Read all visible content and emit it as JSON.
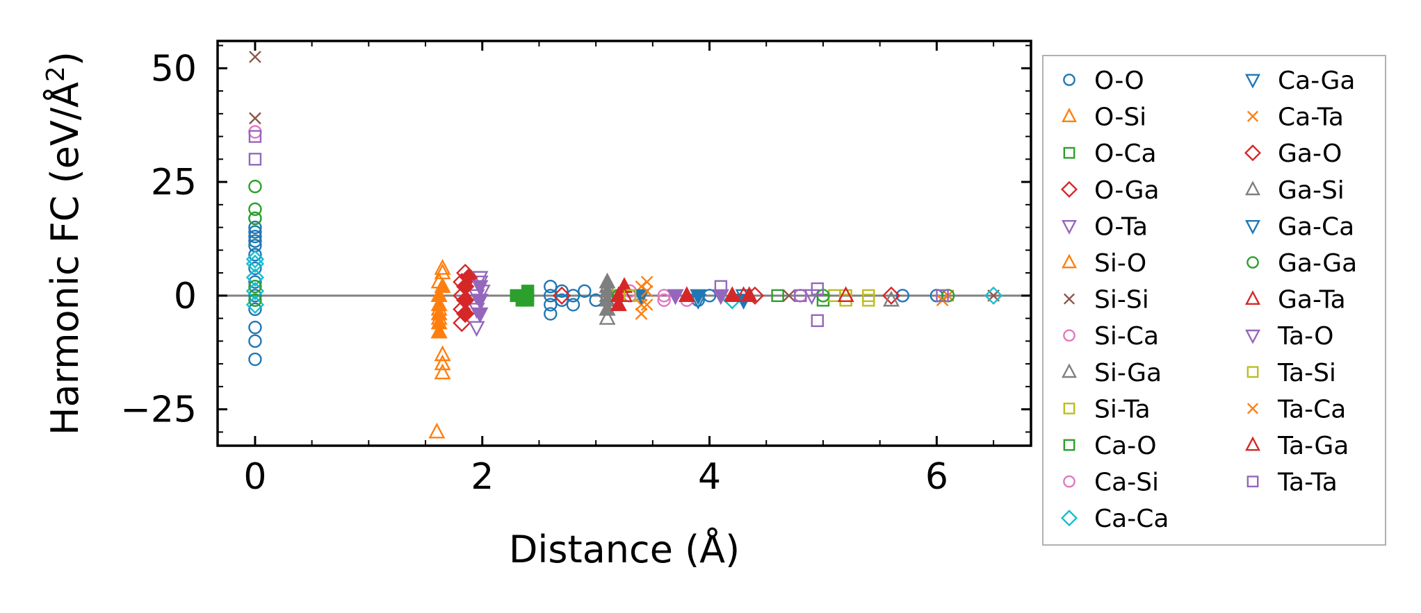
{
  "chart_data": {
    "type": "scatter",
    "title": "",
    "xlabel": "Distance (Å)",
    "ylabel": "Harmonic FC (eV/Å²)",
    "xlim": [
      -0.33,
      6.83
    ],
    "ylim": [
      -33,
      56
    ],
    "xticks": [
      0,
      2,
      4,
      6
    ],
    "xtick_labels": [
      "0",
      "2",
      "4",
      "6"
    ],
    "yticks": [
      -25,
      0,
      25,
      50
    ],
    "ytick_labels": [
      "−25",
      "0",
      "25",
      "50"
    ],
    "reference_line_y": 0,
    "legend_position": "outside-right",
    "series": [
      {
        "name": "O-O",
        "marker": "circle",
        "color": "#1f77b4",
        "filled": false,
        "points": [
          [
            0,
            -14
          ],
          [
            0,
            -10
          ],
          [
            0,
            -7
          ],
          [
            0,
            -3
          ],
          [
            0,
            0
          ],
          [
            0,
            3
          ],
          [
            0,
            6
          ],
          [
            0,
            9
          ],
          [
            0,
            11
          ],
          [
            0,
            12
          ],
          [
            0,
            13
          ],
          [
            0,
            14
          ],
          [
            0,
            15
          ],
          [
            0,
            17
          ],
          [
            2.6,
            -4
          ],
          [
            2.6,
            -2
          ],
          [
            2.6,
            0
          ],
          [
            2.6,
            2
          ],
          [
            2.7,
            -1
          ],
          [
            2.7,
            1
          ],
          [
            2.8,
            0
          ],
          [
            2.8,
            -2
          ],
          [
            2.9,
            1
          ],
          [
            3.0,
            -1
          ],
          [
            3.3,
            0
          ],
          [
            3.9,
            -1
          ],
          [
            4.0,
            0
          ],
          [
            5.7,
            0
          ],
          [
            6.0,
            0
          ]
        ]
      },
      {
        "name": "O-Si",
        "marker": "triangle-up",
        "color": "#ff7f0e",
        "filled": false,
        "points": [
          [
            1.6,
            -30
          ],
          [
            1.65,
            -17
          ],
          [
            1.65,
            -15
          ],
          [
            1.65,
            -13
          ],
          [
            1.62,
            -8
          ],
          [
            1.62,
            -5
          ],
          [
            1.62,
            -3
          ],
          [
            1.62,
            0
          ],
          [
            1.62,
            3
          ],
          [
            1.65,
            5
          ],
          [
            1.65,
            6
          ]
        ]
      },
      {
        "name": "O-Ca",
        "marker": "square",
        "color": "#2ca02c",
        "filled": false,
        "points": [
          [
            2.3,
            0
          ],
          [
            2.35,
            -1
          ],
          [
            2.4,
            0
          ],
          [
            4.6,
            0
          ],
          [
            5.0,
            -1
          ]
        ]
      },
      {
        "name": "O-Ga",
        "marker": "diamond",
        "color": "#d62728",
        "filled": false,
        "points": [
          [
            1.82,
            -6
          ],
          [
            1.82,
            -3
          ],
          [
            1.82,
            0
          ],
          [
            1.82,
            3
          ],
          [
            1.85,
            5
          ],
          [
            2.7,
            0
          ],
          [
            4.4,
            0
          ],
          [
            5.6,
            0
          ]
        ]
      },
      {
        "name": "O-Ta",
        "marker": "triangle-down",
        "color": "#9467bd",
        "filled": false,
        "points": [
          [
            1.95,
            -7
          ],
          [
            1.95,
            -3
          ],
          [
            1.95,
            0
          ],
          [
            1.98,
            3
          ],
          [
            1.98,
            4
          ],
          [
            2.0,
            1
          ],
          [
            3.7,
            0
          ],
          [
            4.9,
            0
          ]
        ]
      },
      {
        "name": "Si-O",
        "marker": "triangle-up",
        "color": "#ff7f0e",
        "filled": true,
        "points": [
          [
            1.62,
            -8
          ],
          [
            1.62,
            -6
          ],
          [
            1.62,
            -4
          ],
          [
            1.62,
            -2
          ],
          [
            1.62,
            0
          ],
          [
            1.65,
            2
          ]
        ]
      },
      {
        "name": "Si-Si",
        "marker": "x",
        "color": "#8c564b",
        "filled": false,
        "points": [
          [
            0,
            52.5
          ],
          [
            0,
            39
          ],
          [
            3.1,
            0
          ],
          [
            4.7,
            0
          ],
          [
            6.5,
            0
          ]
        ]
      },
      {
        "name": "Si-Ca",
        "marker": "circle",
        "color": "#e377c2",
        "filled": false,
        "points": [
          [
            0,
            36
          ],
          [
            3.3,
            0
          ],
          [
            3.6,
            -1
          ],
          [
            4.8,
            0
          ]
        ]
      },
      {
        "name": "Si-Ga",
        "marker": "triangle-up",
        "color": "#7f7f7f",
        "filled": false,
        "points": [
          [
            3.1,
            -5
          ],
          [
            3.1,
            -3
          ],
          [
            3.1,
            0
          ],
          [
            3.1,
            2
          ],
          [
            5.6,
            -1
          ]
        ]
      },
      {
        "name": "Si-Ta",
        "marker": "square",
        "color": "#bcbd22",
        "filled": false,
        "points": [
          [
            3.2,
            0
          ],
          [
            5.1,
            0
          ],
          [
            5.2,
            -1
          ],
          [
            5.4,
            -1
          ]
        ]
      },
      {
        "name": "Ca-O",
        "marker": "square",
        "color": "#2ca02c",
        "filled": true,
        "points": [
          [
            2.3,
            0
          ],
          [
            2.35,
            -1
          ],
          [
            2.4,
            1
          ],
          [
            2.4,
            -1
          ]
        ]
      },
      {
        "name": "Ca-Si",
        "marker": "circle",
        "color": "#e377c2",
        "filled": false,
        "points": [
          [
            3.3,
            1
          ],
          [
            3.6,
            0
          ],
          [
            3.8,
            -1
          ]
        ]
      },
      {
        "name": "Ca-Ca",
        "marker": "diamond",
        "color": "#17becf",
        "filled": false,
        "points": [
          [
            0,
            8
          ],
          [
            0,
            7
          ],
          [
            0,
            4
          ],
          [
            0,
            1
          ],
          [
            0,
            -2
          ],
          [
            4.2,
            -1
          ],
          [
            6.5,
            0
          ]
        ]
      },
      {
        "name": "Ca-Ga",
        "marker": "triangle-down",
        "color": "#1f77b4",
        "filled": false,
        "points": [
          [
            3.4,
            0
          ],
          [
            3.9,
            -1
          ],
          [
            4.3,
            0
          ]
        ]
      },
      {
        "name": "Ca-Ta",
        "marker": "x",
        "color": "#ff7f0e",
        "filled": false,
        "points": [
          [
            3.4,
            -4
          ],
          [
            3.4,
            -2
          ],
          [
            3.4,
            0
          ],
          [
            3.4,
            2
          ],
          [
            3.45,
            3
          ],
          [
            6.1,
            0
          ]
        ]
      },
      {
        "name": "Ga-O",
        "marker": "diamond",
        "color": "#d62728",
        "filled": true,
        "points": [
          [
            1.85,
            -4
          ],
          [
            1.85,
            -1
          ],
          [
            1.85,
            2
          ],
          [
            1.88,
            4
          ]
        ]
      },
      {
        "name": "Ga-Si",
        "marker": "triangle-up",
        "color": "#7f7f7f",
        "filled": true,
        "points": [
          [
            3.1,
            -3
          ],
          [
            3.1,
            -1
          ],
          [
            3.1,
            1
          ],
          [
            3.1,
            3
          ]
        ]
      },
      {
        "name": "Ga-Ca",
        "marker": "triangle-down",
        "color": "#1f77b4",
        "filled": true,
        "points": [
          [
            3.4,
            0
          ],
          [
            3.9,
            0
          ],
          [
            4.3,
            -1
          ]
        ]
      },
      {
        "name": "Ga-Ga",
        "marker": "circle",
        "color": "#2ca02c",
        "filled": false,
        "points": [
          [
            0,
            24
          ],
          [
            0,
            19
          ],
          [
            0,
            17
          ],
          [
            0,
            2
          ],
          [
            0,
            -1
          ],
          [
            3.2,
            0
          ],
          [
            5.0,
            0
          ],
          [
            6.1,
            0
          ]
        ]
      },
      {
        "name": "Ga-Ta",
        "marker": "triangle-up",
        "color": "#d62728",
        "filled": true,
        "points": [
          [
            3.2,
            -2
          ],
          [
            3.2,
            0
          ],
          [
            3.25,
            2
          ],
          [
            3.8,
            0
          ],
          [
            4.2,
            0
          ],
          [
            4.35,
            0
          ]
        ]
      },
      {
        "name": "Ta-O",
        "marker": "triangle-down",
        "color": "#9467bd",
        "filled": true,
        "points": [
          [
            1.98,
            -4
          ],
          [
            1.98,
            -1
          ],
          [
            1.98,
            2
          ],
          [
            3.7,
            0
          ],
          [
            4.1,
            0
          ]
        ]
      },
      {
        "name": "Ta-Si",
        "marker": "square",
        "color": "#bcbd22",
        "filled": false,
        "points": [
          [
            3.3,
            0
          ],
          [
            5.2,
            0
          ],
          [
            5.4,
            0
          ]
        ]
      },
      {
        "name": "Ta-Ca",
        "marker": "x",
        "color": "#ff7f0e",
        "filled": false,
        "points": [
          [
            3.45,
            -2
          ],
          [
            3.45,
            1
          ],
          [
            6.05,
            -1
          ]
        ]
      },
      {
        "name": "Ta-Ga",
        "marker": "triangle-up",
        "color": "#d62728",
        "filled": false,
        "points": [
          [
            3.25,
            0
          ],
          [
            4.3,
            0
          ],
          [
            5.2,
            0
          ]
        ]
      },
      {
        "name": "Ta-Ta",
        "marker": "square",
        "color": "#9467bd",
        "filled": false,
        "points": [
          [
            0,
            35
          ],
          [
            0,
            30
          ],
          [
            4.1,
            2
          ],
          [
            4.8,
            0
          ],
          [
            4.95,
            1.5
          ],
          [
            4.95,
            -5.5
          ],
          [
            6.05,
            0
          ]
        ]
      }
    ]
  }
}
